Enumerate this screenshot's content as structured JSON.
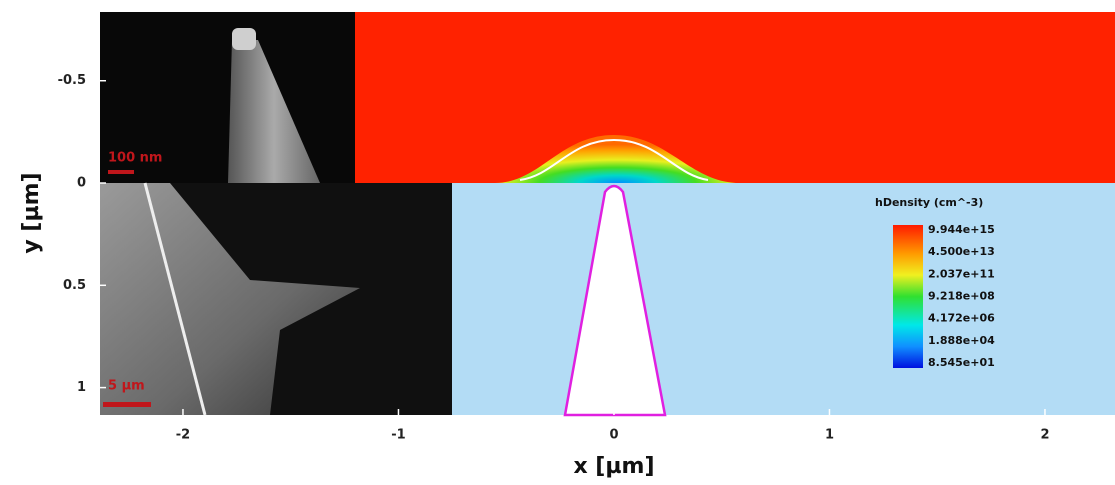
{
  "chart_data": {
    "type": "image",
    "xlabel": "x [µm]",
    "ylabel": "y [µm]",
    "xlim": [
      -2.385,
      2.325
    ],
    "ylim": [
      -0.836,
      1.134
    ],
    "y_inverted": true,
    "xticks": [
      -2,
      -1,
      0,
      1,
      2
    ],
    "yticks": [
      -0.5,
      0,
      0.5,
      1
    ],
    "colorbar": {
      "title": "hDensity (cm^-3)",
      "labels": [
        "9.944e+15",
        "4.500e+13",
        "2.037e+11",
        "9.218e+08",
        "4.172e+06",
        "1.888e+04",
        "8.545e+01"
      ]
    },
    "scale_bars": [
      "100 nm",
      "5 µm"
    ]
  }
}
